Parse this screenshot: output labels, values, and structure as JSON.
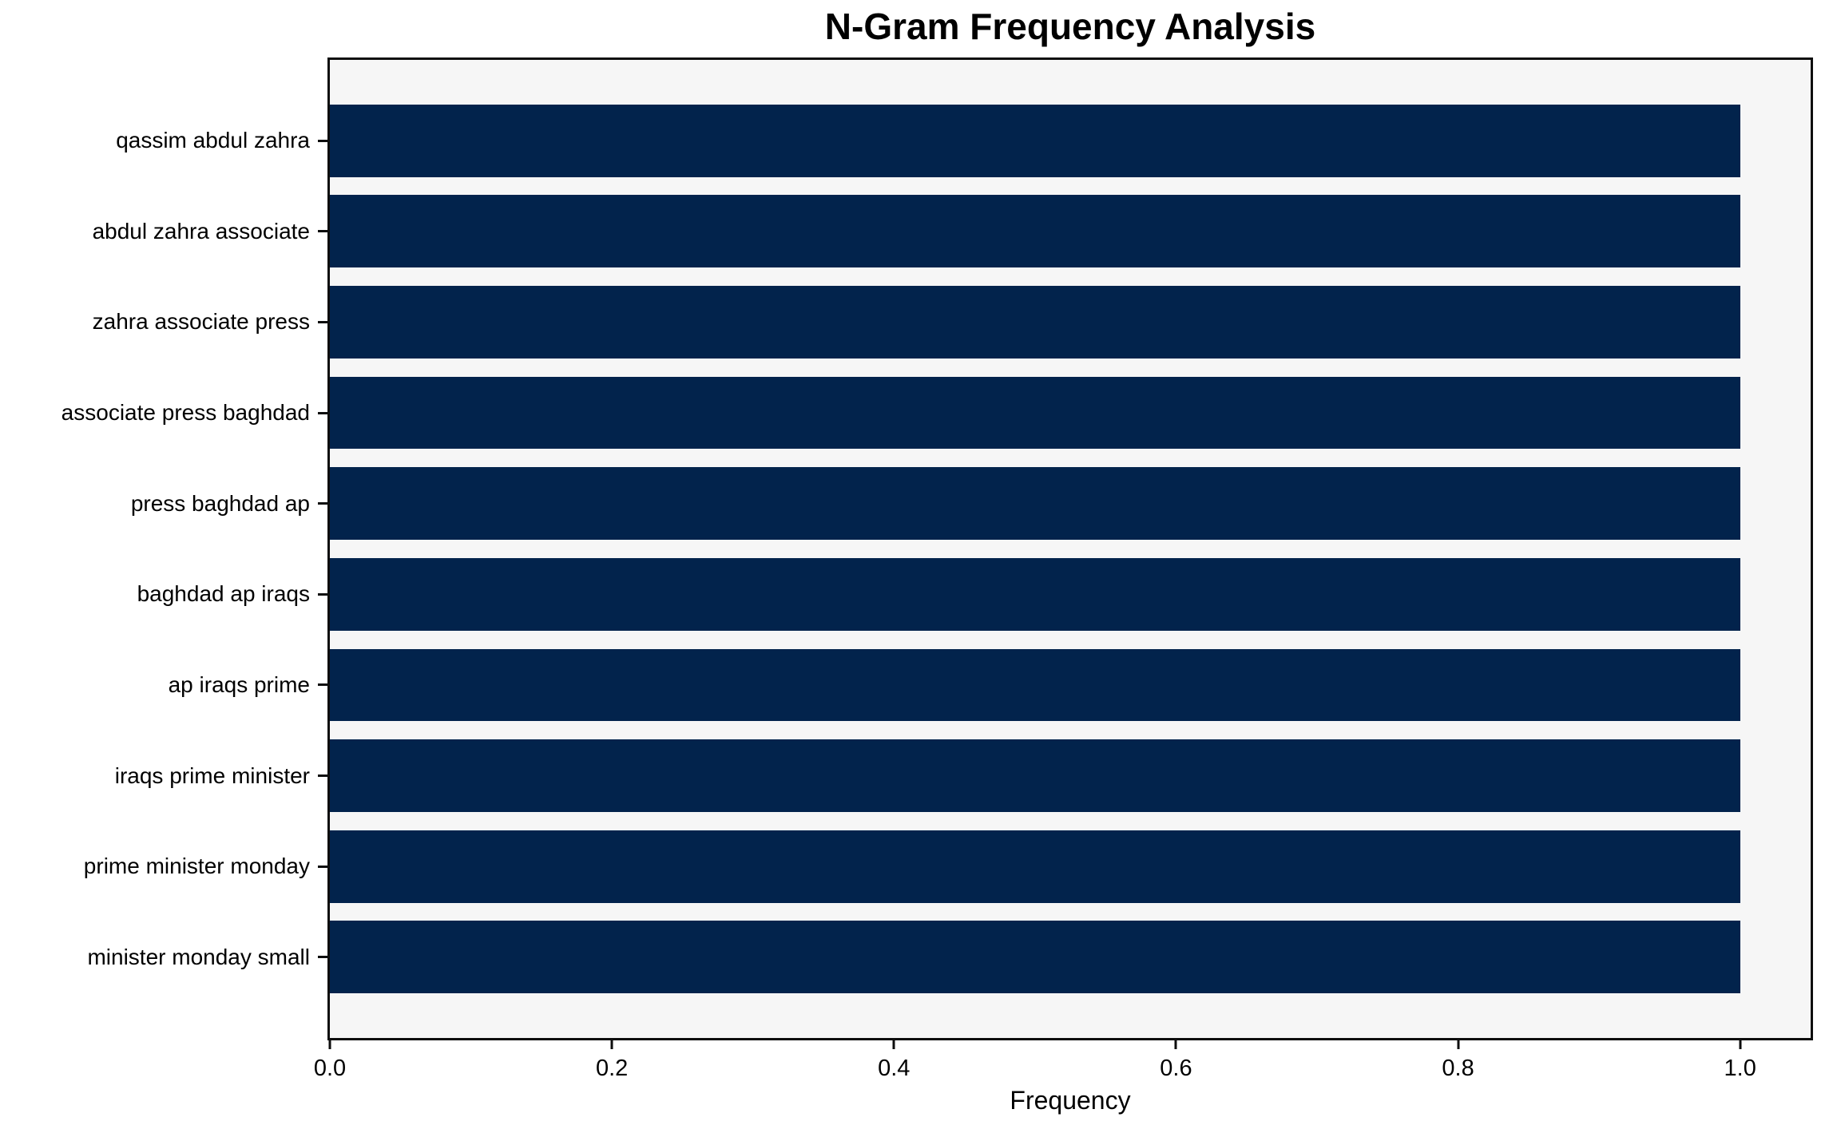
{
  "chart_data": {
    "type": "bar",
    "orientation": "horizontal",
    "title": "N-Gram Frequency Analysis",
    "xlabel": "Frequency",
    "ylabel": "",
    "categories": [
      "qassim abdul zahra",
      "abdul zahra associate",
      "zahra associate press",
      "associate press baghdad",
      "press baghdad ap",
      "baghdad ap iraqs",
      "ap iraqs prime",
      "iraqs prime minister",
      "prime minister monday",
      "minister monday small"
    ],
    "values": [
      1.0,
      1.0,
      1.0,
      1.0,
      1.0,
      1.0,
      1.0,
      1.0,
      1.0,
      1.0
    ],
    "x_ticks": [
      {
        "value": 0.0,
        "label": "0.0"
      },
      {
        "value": 0.2,
        "label": "0.2"
      },
      {
        "value": 0.4,
        "label": "0.4"
      },
      {
        "value": 0.6,
        "label": "0.6"
      },
      {
        "value": 0.8,
        "label": "0.8"
      },
      {
        "value": 1.0,
        "label": "1.0"
      }
    ],
    "xlim": [
      0,
      1.05
    ],
    "grid": false,
    "legend": null,
    "bar_color": "#02234c",
    "plot_bg": "#f6f6f6",
    "spine_color": "#0e0e0e",
    "bar_width_fraction": 0.8,
    "y_margin_units": 0.89
  }
}
